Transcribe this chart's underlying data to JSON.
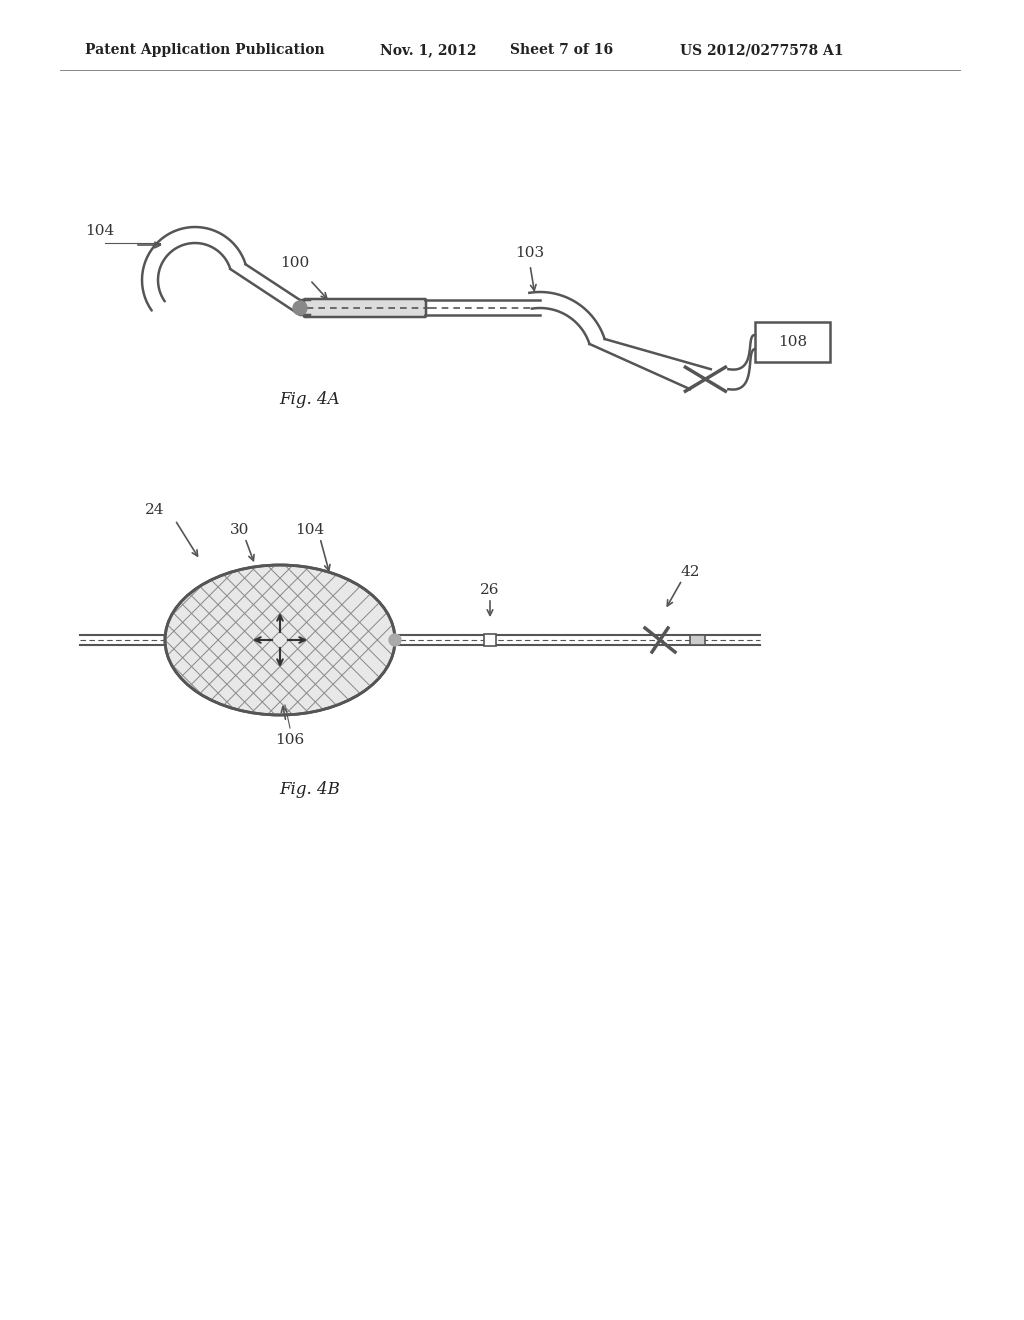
{
  "background_color": "#ffffff",
  "header_text": "Patent Application Publication",
  "header_date": "Nov. 1, 2012",
  "header_sheet": "Sheet 7 of 16",
  "header_patent": "US 2012/0277578 A1",
  "fig4a_caption": "Fig. 4A",
  "fig4b_caption": "Fig. 4B",
  "line_color": "#555555",
  "label_color": "#333333",
  "label_fontsize": 11,
  "caption_fontsize": 12
}
